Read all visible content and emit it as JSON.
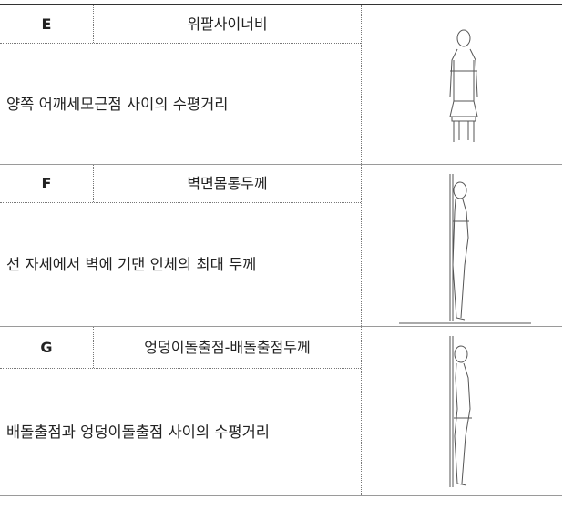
{
  "rows": [
    {
      "code": "E",
      "name": "위팔사이너비",
      "description": "양쪽 어깨세모근점 사이의 수평거리"
    },
    {
      "code": "F",
      "name": "벽면몸통두께",
      "description": "선 자세에서 벽에 기댄 인체의 최대 두께"
    },
    {
      "code": "G",
      "name": "엉덩이돌출점-배돌출점두께",
      "description": "배돌출점과 엉덩이돌출점 사이의 수평거리"
    }
  ]
}
